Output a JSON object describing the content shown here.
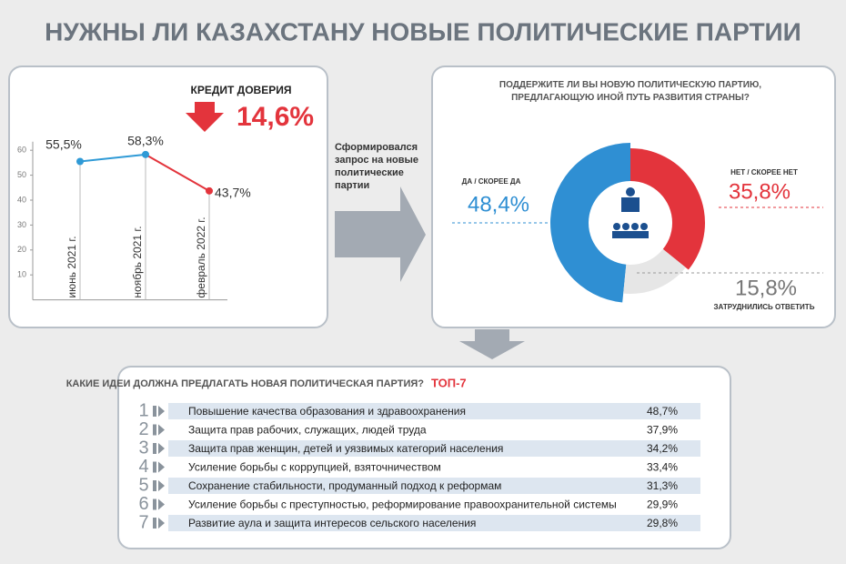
{
  "title": "НУЖНЫ ЛИ КАЗАХСТАНУ НОВЫЕ ПОЛИТИЧЕСКИЕ ПАРТИИ",
  "note": "Сформировался запрос на новые политические партии",
  "chart_data": [
    {
      "type": "line",
      "annotation": "КРЕДИТ ДОВЕРИЯ",
      "annotation_value": "14,6%",
      "categories": [
        "июнь 2021 г.",
        "ноябрь 2021 г.",
        "февраль 2022 г."
      ],
      "values": [
        55.5,
        58.3,
        43.7
      ],
      "value_labels": [
        "55,5%",
        "58,3%",
        "43,7%"
      ],
      "colors": [
        "#2f9ad6",
        "#2f9ad6",
        "#e3343c"
      ],
      "ylim": [
        0,
        62
      ],
      "yticks": [
        10,
        20,
        30,
        40,
        50,
        60
      ]
    },
    {
      "type": "donut",
      "title": "ПОДДЕРЖИТЕ ЛИ ВЫ НОВУЮ ПОЛИТИЧЕСКУЮ ПАРТИЮ, ПРЕДЛАГАЮЩУЮ ИНОЙ ПУТЬ РАЗВИТИЯ СТРАНЫ?",
      "categories": [
        "ДА / СКОРЕЕ ДА",
        "НЕТ / СКОРЕЕ НЕТ",
        "ЗАТРУДНИЛИСЬ ОТВЕТИТЬ"
      ],
      "values": [
        48.4,
        35.8,
        15.8
      ],
      "value_labels": [
        "48,4%",
        "35,8%",
        "15,8%"
      ],
      "colors": [
        "#2f8fd3",
        "#e3343c",
        "#e6e6e6"
      ]
    },
    {
      "type": "ranking",
      "title": "КАКИЕ ИДЕИ ДОЛЖНА ПРЕДЛАГАТЬ НОВАЯ ПОЛИТИЧЕСКАЯ ПАРТИЯ?",
      "subtitle": "ТОП-7",
      "ranks": [
        1,
        2,
        3,
        4,
        5,
        6,
        7
      ],
      "categories": [
        "Повышение качества образования и здравоохранения",
        "Защита прав рабочих, служащих, людей труда",
        "Защита прав женщин, детей и уязвимых категорий населения",
        "Усиление борьбы с коррупцией, взяточничеством",
        "Сохранение стабильности, продуманный подход к реформам",
        "Усиление борьбы с преступностью, реформирование правоохранительной системы",
        "Развитие аула и защита интересов сельского населения"
      ],
      "values": [
        48.7,
        37.9,
        34.2,
        33.4,
        31.3,
        29.9,
        29.8
      ],
      "value_labels": [
        "48,7%",
        "37,9%",
        "34,2%",
        "33,4%",
        "31,3%",
        "29,9%",
        "29,8%"
      ]
    }
  ]
}
